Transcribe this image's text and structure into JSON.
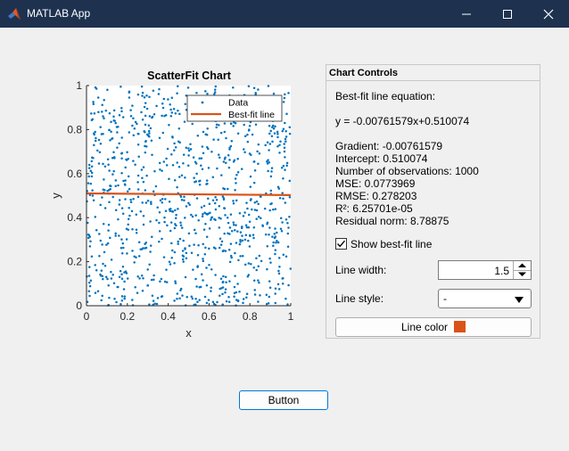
{
  "window": {
    "title": "MATLAB App",
    "icon": "matlab-logo-icon",
    "controls": [
      "minimize-icon",
      "maximize-icon",
      "close-icon"
    ]
  },
  "chart_data": {
    "type": "scatter",
    "title": "ScatterFit Chart",
    "xlabel": "x",
    "ylabel": "y",
    "xlim": [
      0,
      1
    ],
    "ylim": [
      0,
      1
    ],
    "xticks": [
      "0",
      "0.2",
      "0.4",
      "0.6",
      "0.8",
      "1"
    ],
    "yticks": [
      "0",
      "0.2",
      "0.4",
      "0.6",
      "0.8",
      "1"
    ],
    "grid": false,
    "legend": {
      "position": "top-right",
      "entries": [
        "Data",
        "Best-fit line"
      ]
    },
    "series": [
      {
        "name": "Data",
        "kind": "scatter",
        "color": "#0072bd",
        "count": 1000,
        "distribution": "uniform random on [0,1]x[0,1]"
      },
      {
        "name": "Best-fit line",
        "kind": "line",
        "color": "#d95319",
        "slope": -0.00761579,
        "intercept": 0.510074
      }
    ]
  },
  "controls_panel": {
    "title": "Chart Controls",
    "equation_label": "Best-fit line equation:",
    "equation": "y = -0.00761579x+0.510074",
    "stats": [
      "Gradient: -0.00761579",
      "Intercept: 0.510074",
      "Number of observations: 1000",
      "MSE: 0.0773969",
      "RMSE: 0.278203",
      "R²: 6.25701e-05",
      "Residual norm: 8.78875"
    ],
    "show_fit": {
      "label": "Show best-fit line",
      "checked": true
    },
    "line_width": {
      "label": "Line width:",
      "value": "1.5"
    },
    "line_style": {
      "label": "Line style:",
      "value": "-"
    },
    "line_color": {
      "label": "Line color",
      "color": "#d95319"
    }
  },
  "main_button": {
    "label": "Button"
  }
}
